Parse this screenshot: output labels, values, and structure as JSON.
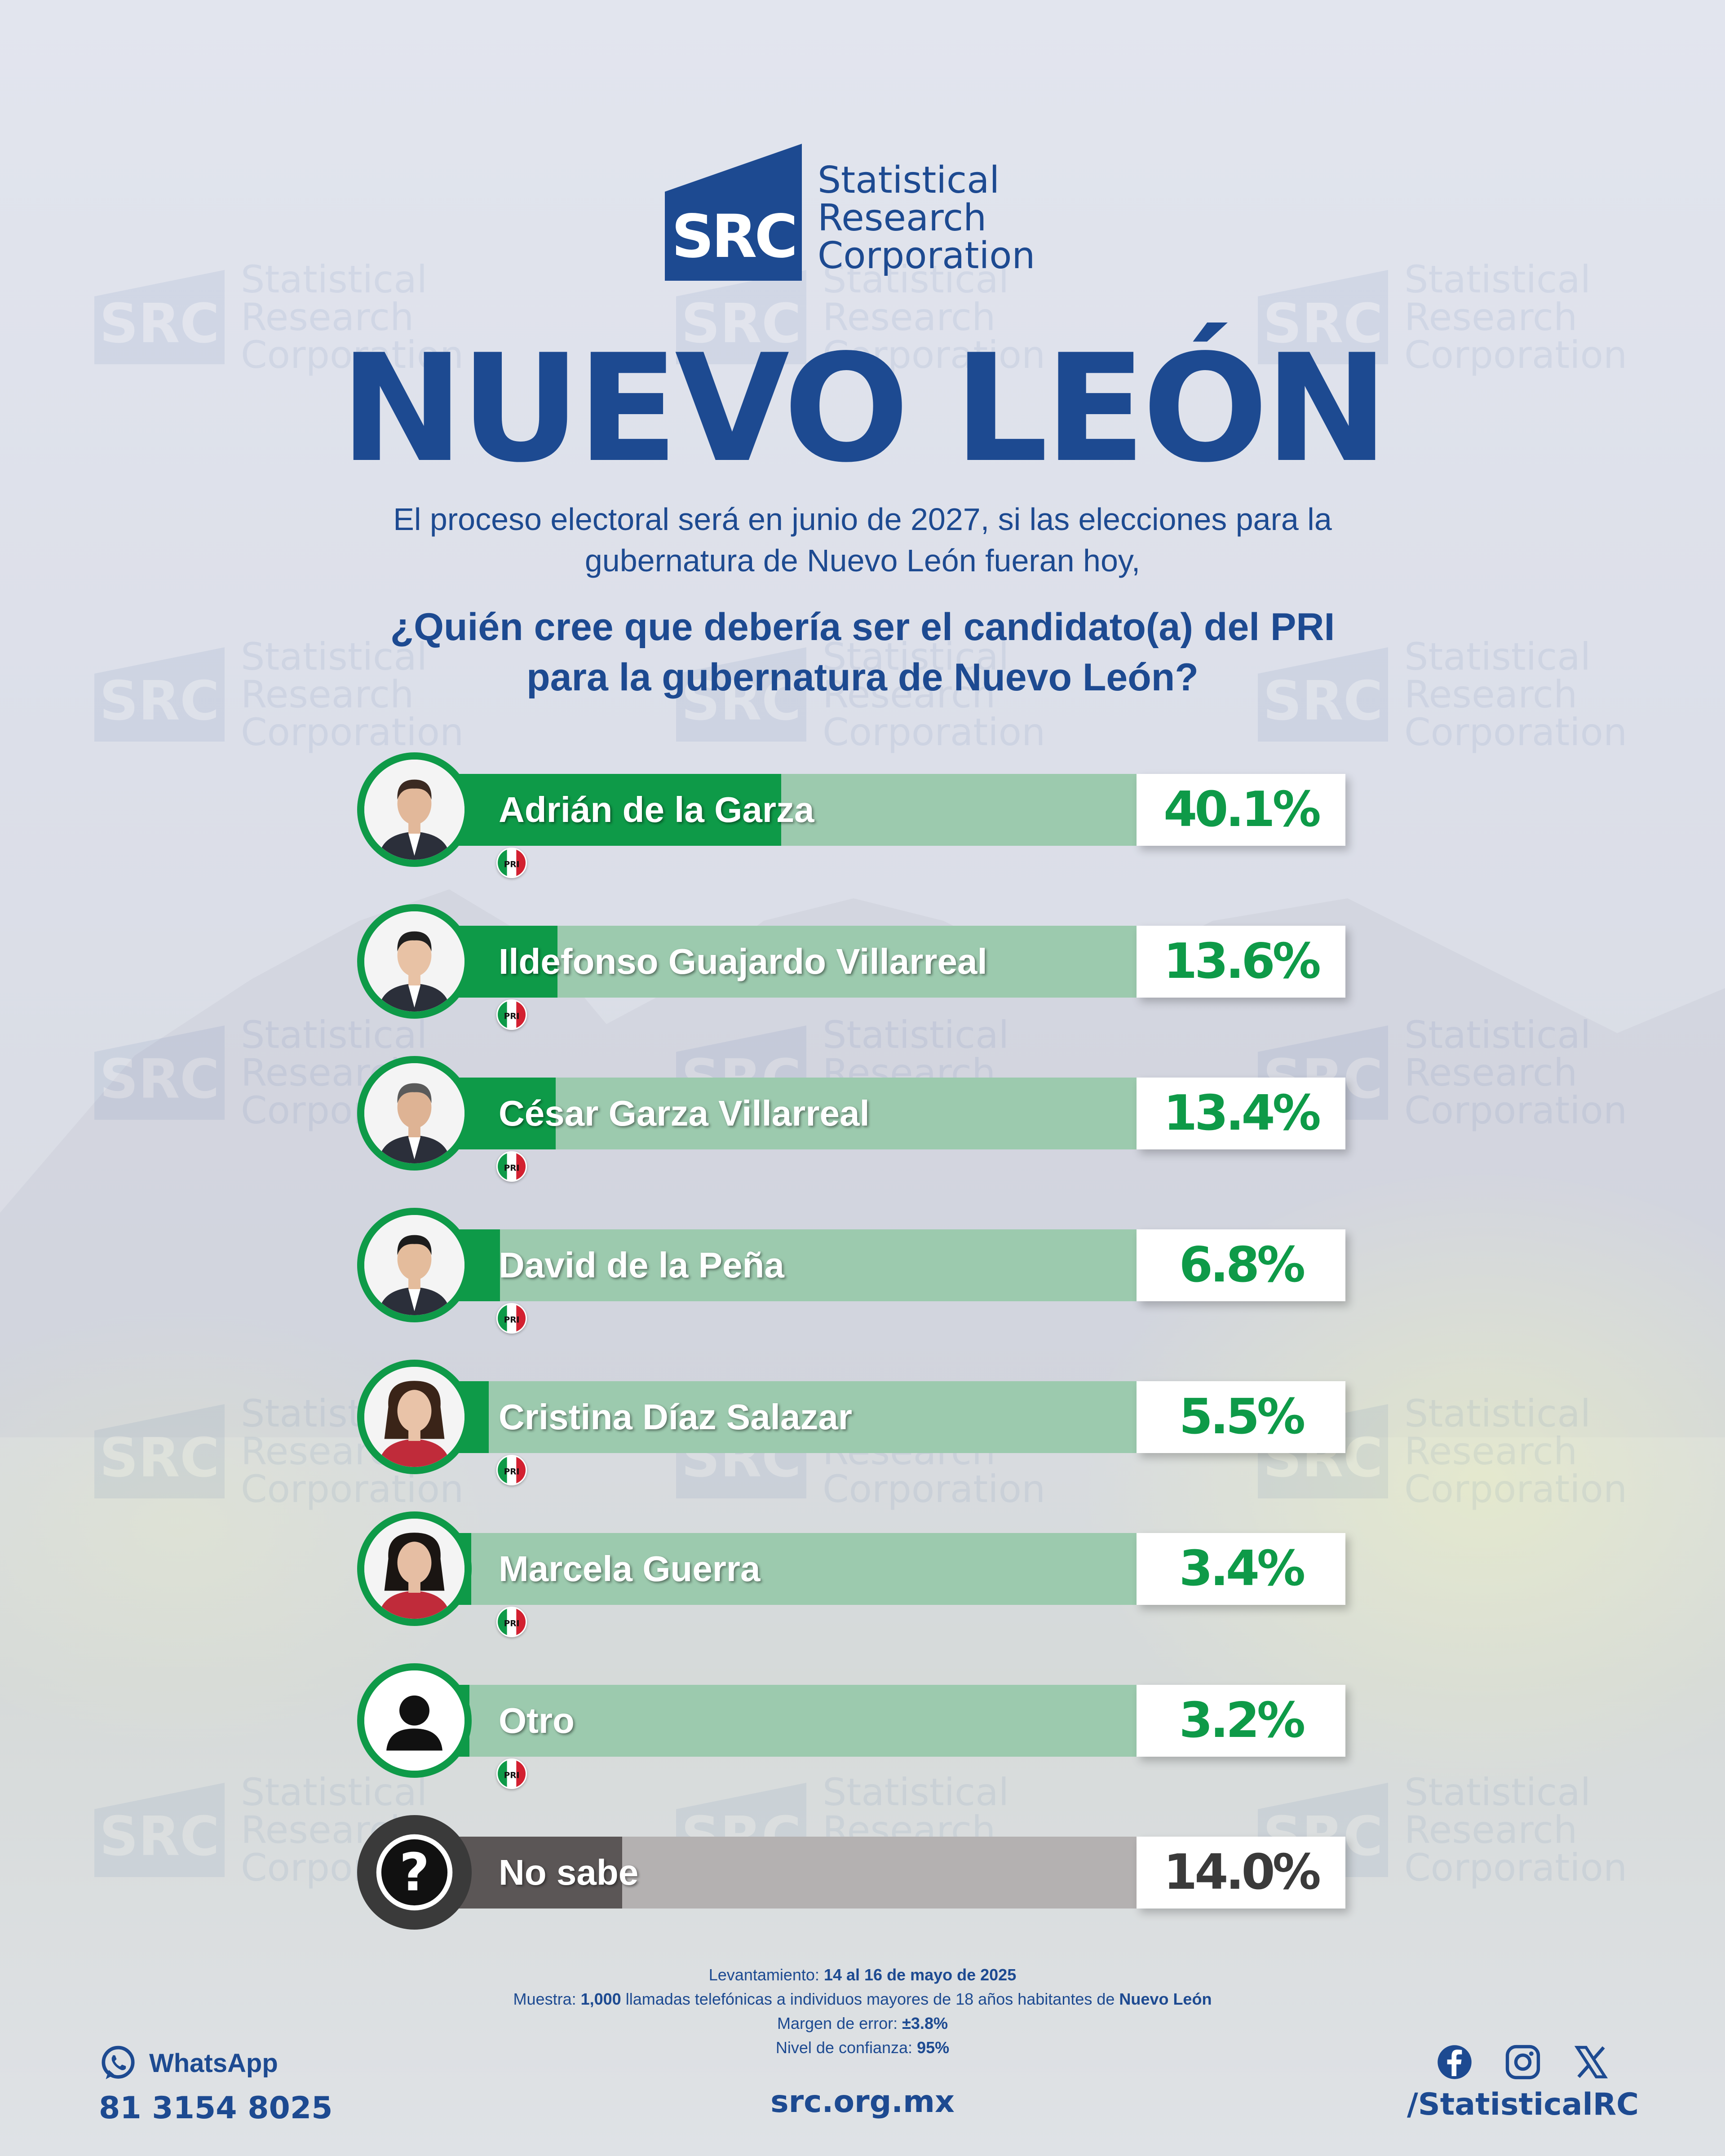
{
  "brand": {
    "logo_letters": "SRC",
    "name_lines": [
      "Statistical",
      "Research",
      "Corporation"
    ],
    "primary_color": "#1d4a91",
    "green_color": "#0e9a48"
  },
  "title": "NUEVO LEÓN",
  "subtitle_lines": [
    "El proceso electoral será en junio de 2027, si las elecciones para la",
    "gubernatura de Nuevo León fueran hoy,"
  ],
  "question_lines": [
    "¿Quién cree que debería ser el candidato(a) del PRI",
    "para la gubernatura de Nuevo León?"
  ],
  "chart_data": {
    "type": "bar",
    "orientation": "horizontal",
    "categories": [
      "Adrián de la Garza",
      "Ildefonso Guajardo Villarreal",
      "César Garza Villarreal",
      "David de la Peña",
      "Cristina Díaz Salazar",
      "Marcela Guerra",
      "Otro",
      "No sabe"
    ],
    "values": [
      40.1,
      13.6,
      13.4,
      6.8,
      5.5,
      3.4,
      3.2,
      14.0
    ],
    "value_labels": [
      "40.1%",
      "13.6%",
      "13.4%",
      "6.8%",
      "5.5%",
      "3.4%",
      "3.2%",
      "14.0%"
    ],
    "xlim": [
      0,
      100
    ],
    "unit": "%"
  },
  "methodology": {
    "levantamiento_label": "Levantamiento:",
    "levantamiento_value": "14 al 16 de mayo de 2025",
    "muestra_label": "Muestra:",
    "muestra_value": "1,000",
    "muestra_text": "llamadas telefónicas a individuos mayores de 18 años habitantes de",
    "muestra_place": "Nuevo León",
    "margen_label": "Margen de error:",
    "margen_value": "±3.8%",
    "nivel_label": "Nivel de confianza:",
    "nivel_value": "95%"
  },
  "footer": {
    "whatsapp_label": "WhatsApp",
    "whatsapp_number": "81 3154 8025",
    "website": "src.org.mx",
    "social_handle": "/StatisticalRC",
    "social_icons": [
      "facebook-icon",
      "instagram-icon",
      "x-icon"
    ]
  }
}
